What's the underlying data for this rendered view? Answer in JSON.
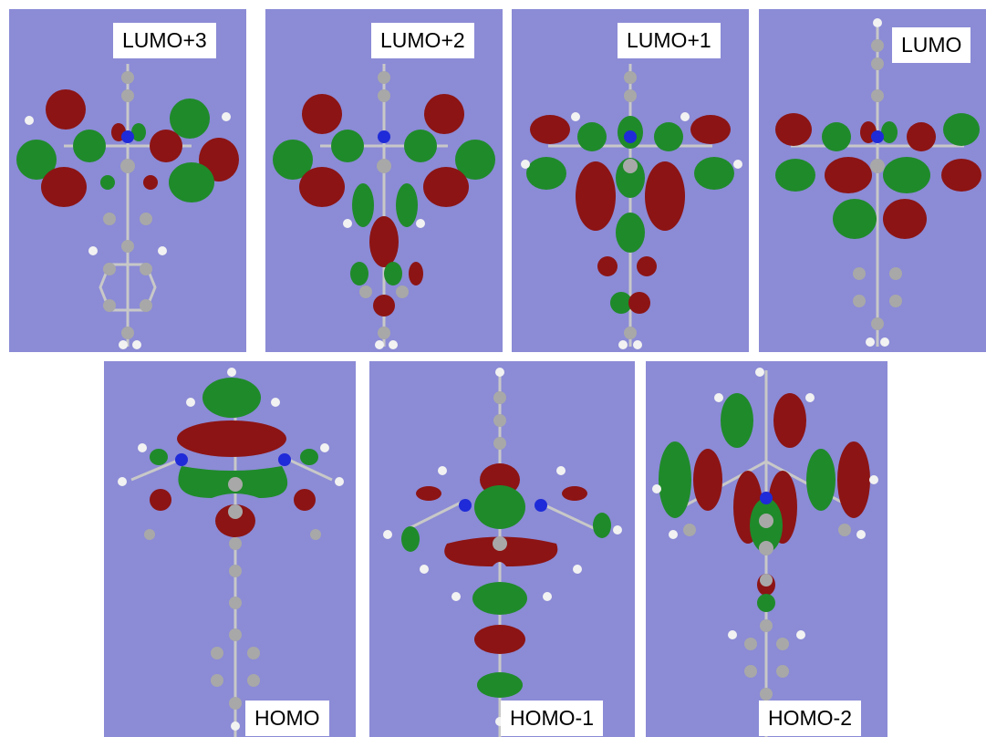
{
  "figure": {
    "background": "#ffffff",
    "panel_background": "#8b8bd6",
    "orbital_colors": {
      "positive": "#1f8a2a",
      "negative": "#8c1414"
    },
    "atom_colors": {
      "carbon": "#a8a8a8",
      "hydrogen": "#f2f2f2",
      "nitrogen": "#1f2bd8"
    },
    "panels": [
      {
        "label": "LUMO+3",
        "icon": "molecular-orbital-isosurface"
      },
      {
        "label": "LUMO+2",
        "icon": "molecular-orbital-isosurface"
      },
      {
        "label": "LUMO+1",
        "icon": "molecular-orbital-isosurface"
      },
      {
        "label": "LUMO",
        "icon": "molecular-orbital-isosurface"
      },
      {
        "label": "HOMO",
        "icon": "molecular-orbital-isosurface"
      },
      {
        "label": "HOMO-1",
        "icon": "molecular-orbital-isosurface"
      },
      {
        "label": "HOMO-2",
        "icon": "molecular-orbital-isosurface"
      }
    ]
  }
}
